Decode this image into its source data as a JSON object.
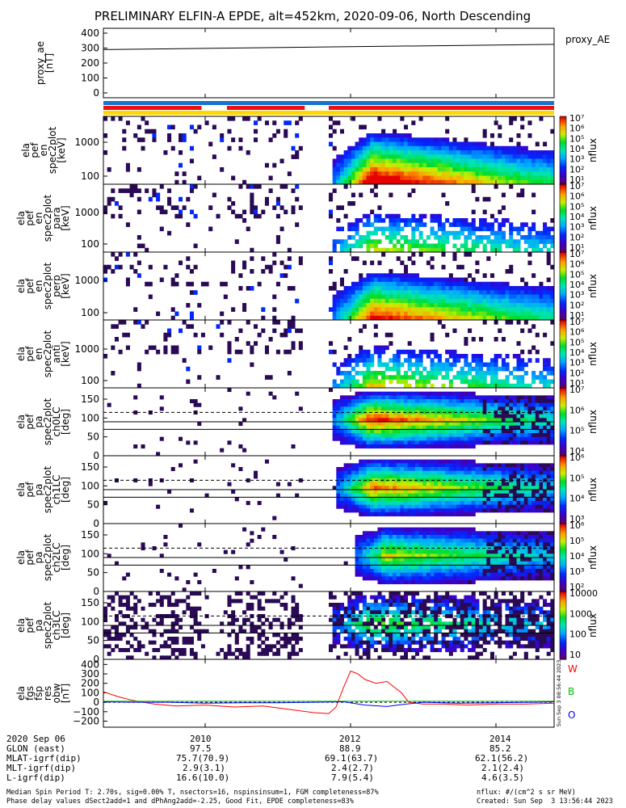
{
  "title": "PRELIMINARY ELFIN-A EPDE, alt=452km, 2020-09-06, North Descending",
  "colors": {
    "bar_blue": "#1874cd",
    "bar_red": "#ee1111",
    "bar_yellow": "#ffd700",
    "w_color": "#ff0000",
    "b_color": "#00c000",
    "o_color": "#0000ff"
  },
  "chart_data": [
    {
      "type": "line",
      "id": "proxy_ae",
      "ylabel": [
        "proxy_ae",
        "[nT]"
      ],
      "yticks": [
        "400",
        "300",
        "200",
        "100",
        "0"
      ],
      "ylim": [
        0,
        400
      ],
      "legend": "proxy_AE",
      "x": [
        2008.6,
        2014.8
      ],
      "values": [
        290,
        325
      ]
    },
    {
      "type": "heatmap",
      "id": "en_spec_1",
      "ylabel": [
        "ela",
        "pef",
        "en",
        "spec2plot",
        "[keV]"
      ],
      "yticks": [
        "1000",
        "100"
      ],
      "yscale": "log",
      "cbar_label": "nflux",
      "cbar_ticks": [
        "10⁷",
        "10⁶",
        "10⁵",
        "10⁴",
        "10³",
        "10²",
        "10¹"
      ]
    },
    {
      "type": "heatmap",
      "id": "en_spec_2",
      "ylabel": [
        "ela",
        "pef",
        "en",
        "spec2plot",
        "para",
        "[keV]"
      ],
      "yticks": [
        "1000",
        "100"
      ],
      "yscale": "log",
      "cbar_label": "nflux",
      "cbar_ticks": [
        "10⁷",
        "10⁶",
        "10⁵",
        "10⁴",
        "10³",
        "10²",
        "10¹"
      ]
    },
    {
      "type": "heatmap",
      "id": "en_spec_3",
      "ylabel": [
        "ela",
        "pef",
        "en",
        "spec2plot",
        "perp",
        "[keV]"
      ],
      "yticks": [
        "1000",
        "100"
      ],
      "yscale": "log",
      "cbar_label": "nflux",
      "cbar_ticks": [
        "10⁷",
        "10⁶",
        "10⁵",
        "10⁴",
        "10³",
        "10²",
        "10¹"
      ]
    },
    {
      "type": "heatmap",
      "id": "en_spec_4",
      "ylabel": [
        "ela",
        "pef",
        "en",
        "spec2plot",
        "anti",
        "[keV]"
      ],
      "yticks": [
        "1000",
        "100"
      ],
      "yscale": "log",
      "cbar_label": "nflux",
      "cbar_ticks": [
        "10⁷",
        "10⁶",
        "10⁵",
        "10⁴",
        "10³",
        "10²",
        "10¹"
      ]
    },
    {
      "type": "heatmap",
      "id": "pa_spec_0",
      "ylabel": [
        "ela",
        "pef",
        "pa",
        "spec2plot",
        "ch0LC",
        "[deg]"
      ],
      "yticks": [
        "150",
        "100",
        "50",
        "0"
      ],
      "ylim": [
        0,
        180
      ],
      "cbar_label": "nflux",
      "cbar_ticks": [
        "10⁷",
        "10⁶",
        "10⁵",
        "10⁴"
      ]
    },
    {
      "type": "heatmap",
      "id": "pa_spec_1",
      "ylabel": [
        "ela",
        "pef",
        "pa",
        "spec2plot",
        "ch1LC",
        "[deg]"
      ],
      "yticks": [
        "150",
        "100",
        "50",
        "0"
      ],
      "ylim": [
        0,
        180
      ],
      "cbar_label": "nflux",
      "cbar_ticks": [
        "10⁶",
        "10⁵",
        "10⁴",
        "10³"
      ]
    },
    {
      "type": "heatmap",
      "id": "pa_spec_2",
      "ylabel": [
        "ela",
        "pef",
        "pa",
        "spec2plot",
        "ch2LC",
        "[deg]"
      ],
      "yticks": [
        "150",
        "100",
        "50",
        "0"
      ],
      "ylim": [
        0,
        180
      ],
      "cbar_label": "nflux",
      "cbar_ticks": [
        "10⁶",
        "10⁵",
        "10⁴",
        "10³",
        "10²"
      ]
    },
    {
      "type": "heatmap",
      "id": "pa_spec_3",
      "ylabel": [
        "ela",
        "pef",
        "pa",
        "spec2plot",
        "ch3LC",
        "[deg]"
      ],
      "yticks": [
        "150",
        "100",
        "50",
        "0"
      ],
      "ylim": [
        0,
        180
      ],
      "cbar_label": "nflux",
      "cbar_ticks": [
        "10000",
        "1000",
        "100",
        "10"
      ]
    },
    {
      "type": "line",
      "id": "fgs",
      "ylabel": [
        "ela",
        "fgs",
        "fsp",
        "res",
        "obw",
        "[nT]"
      ],
      "yticks": [
        "400",
        "300",
        "200",
        "100",
        "0",
        "−100",
        "−200"
      ],
      "ylim": [
        -230,
        420
      ],
      "legend": [
        "W",
        "B",
        "O"
      ],
      "side_text": "Sun Sep  3 08:56:44 2023",
      "series": [
        {
          "name": "W",
          "x": [
            2008.6,
            2008.8,
            2009.0,
            2009.3,
            2009.6,
            2010.0,
            2010.4,
            2010.8,
            2011.2,
            2011.5,
            2011.7,
            2011.8,
            2011.9,
            2012.0,
            2012.1,
            2012.2,
            2012.35,
            2012.5,
            2012.7,
            2012.8,
            2013.0,
            2013.3,
            2013.6,
            2014.0,
            2014.4,
            2014.8
          ],
          "y": [
            110,
            60,
            20,
            -20,
            -40,
            -30,
            -50,
            -40,
            -80,
            -110,
            -120,
            -50,
            150,
            330,
            300,
            240,
            200,
            220,
            100,
            0,
            -20,
            -20,
            -30,
            -20,
            -20,
            -10
          ]
        },
        {
          "name": "B",
          "x": [
            2008.6,
            2014.8
          ],
          "y": [
            10,
            10
          ]
        },
        {
          "name": "O",
          "x": [
            2008.6,
            2009.0,
            2009.5,
            2010.0,
            2010.5,
            2011.0,
            2011.5,
            2011.9,
            2012.2,
            2012.5,
            2012.7,
            2013.0,
            2013.5,
            2014.0,
            2014.5,
            2014.8
          ],
          "y": [
            5,
            0,
            0,
            -10,
            -5,
            -5,
            0,
            5,
            -30,
            -45,
            -25,
            0,
            -10,
            -5,
            0,
            5
          ]
        }
      ]
    }
  ],
  "footer": {
    "date": "2020 Sep 06",
    "x_ticks": [
      "2010",
      "2012",
      "2014"
    ],
    "rows": [
      {
        "label": "GLON (east)",
        "values": [
          "97.5",
          "88.9",
          "85.2"
        ]
      },
      {
        "label": "MLAT-igrf(dip)",
        "values": [
          "75.7(70.9)",
          "69.1(63.7)",
          "62.1(56.2)"
        ]
      },
      {
        "label": "MLT-igrf(dip)",
        "values": [
          "2.9(3.1)",
          "2.4(2.7)",
          "2.1(2.4)"
        ]
      },
      {
        "label": "L-igrf(dip)",
        "values": [
          "16.6(10.0)",
          "7.9(5.4)",
          "4.6(3.5)"
        ]
      }
    ],
    "note1": "Median Spin Period T: 2.70s, sig=0.00% T, nsectors=16, nspinsinsum=1, FGM completeness=87%",
    "note2": "Phase delay values dSect2add=1 and dPhAng2add=-2.25, Good Fit, EPDE completeness=83%",
    "units": "nflux: #/(cm^2 s sr MeV)",
    "created": "Created: Sun Sep  3 13:56:44 2023"
  }
}
